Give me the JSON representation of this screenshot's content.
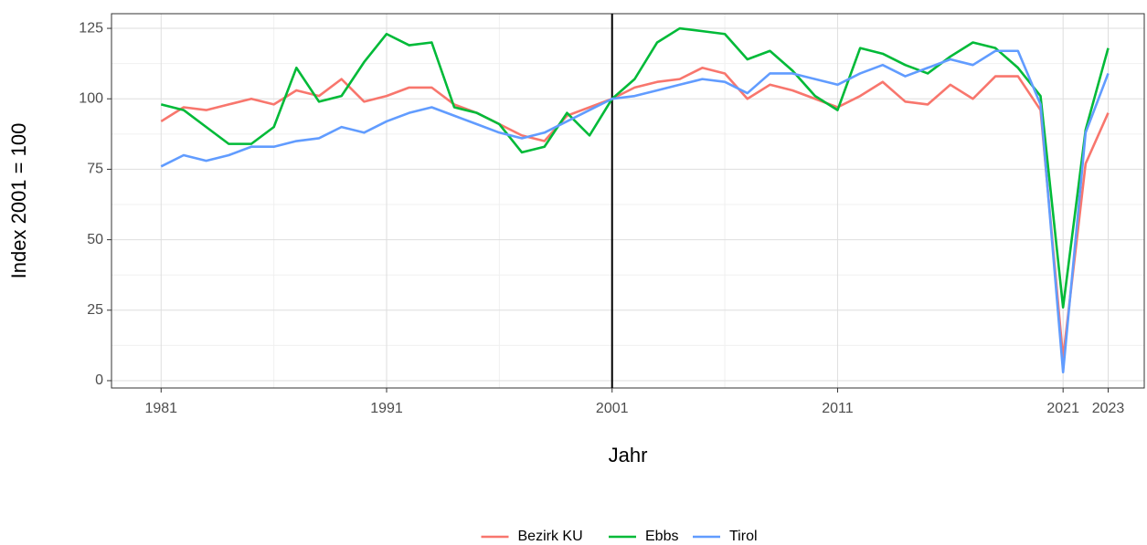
{
  "chart_data": {
    "type": "line",
    "x_label": "Jahr",
    "y_label": "Index 2001 = 100",
    "x": [
      1981,
      1982,
      1983,
      1984,
      1985,
      1986,
      1987,
      1988,
      1989,
      1990,
      1991,
      1992,
      1993,
      1994,
      1995,
      1996,
      1997,
      1998,
      1999,
      2000,
      2001,
      2002,
      2003,
      2004,
      2005,
      2006,
      2007,
      2008,
      2009,
      2010,
      2011,
      2012,
      2013,
      2014,
      2015,
      2016,
      2017,
      2018,
      2019,
      2020,
      2021,
      2022,
      2023
    ],
    "series": [
      {
        "name": "Bezirk KU",
        "color": "#F8766D",
        "values": [
          92,
          97,
          96,
          98,
          100,
          98,
          103,
          101,
          107,
          99,
          101,
          104,
          104,
          98,
          95,
          91,
          87,
          85,
          94,
          97,
          100,
          104,
          106,
          107,
          111,
          109,
          100,
          105,
          103,
          100,
          97,
          101,
          106,
          99,
          98,
          105,
          100,
          108,
          108,
          96,
          8,
          77,
          95
        ]
      },
      {
        "name": "Ebbs",
        "color": "#00BA38",
        "values": [
          98,
          96,
          90,
          84,
          84,
          90,
          111,
          99,
          101,
          113,
          123,
          119,
          120,
          97,
          95,
          91,
          81,
          83,
          95,
          87,
          100,
          107,
          120,
          125,
          124,
          123,
          114,
          117,
          110,
          101,
          96,
          118,
          116,
          112,
          109,
          115,
          120,
          118,
          111,
          101,
          26,
          89,
          118
        ]
      },
      {
        "name": "Tirol",
        "color": "#619CFF",
        "values": [
          76,
          80,
          78,
          80,
          83,
          83,
          85,
          86,
          90,
          88,
          92,
          95,
          97,
          94,
          91,
          88,
          86,
          88,
          92,
          96,
          100,
          101,
          103,
          105,
          107,
          106,
          102,
          109,
          109,
          107,
          105,
          109,
          112,
          108,
          111,
          114,
          112,
          117,
          117,
          98,
          3,
          88,
          109
        ]
      }
    ],
    "xlim": [
      1978.8,
      2024.6
    ],
    "xticks": [
      1981,
      1991,
      2001,
      2011,
      2021,
      2023
    ],
    "ylim": [
      -2.6,
      130.2
    ],
    "yticks": [
      0,
      25,
      50,
      75,
      100,
      125
    ],
    "vline": 2001,
    "grid": true,
    "legend": "bottom"
  }
}
